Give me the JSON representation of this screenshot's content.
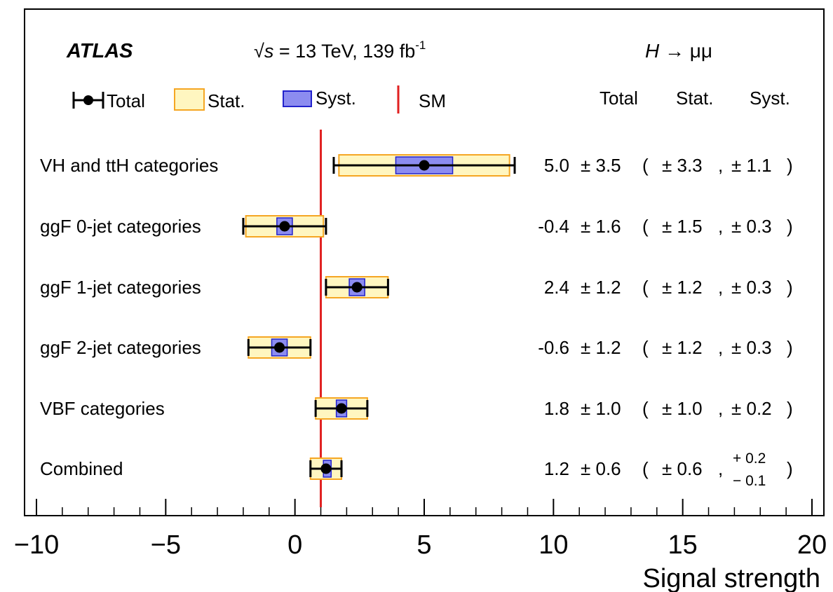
{
  "chart_data": {
    "type": "forest",
    "experiment": "ATLAS",
    "energy_prefix": "√",
    "energy_var": "s",
    "energy_text": " = 13 TeV,  139 fb",
    "energy_exp": "-1",
    "process_var": "H",
    "process_rest": " → μμ",
    "xlabel": "Signal strength",
    "xlim": [
      -10,
      20
    ],
    "xticks": [
      -10,
      -5,
      0,
      5,
      10,
      15,
      20
    ],
    "xtick_labels": [
      "−10",
      "−5",
      "0",
      "5",
      "10",
      "15",
      "20"
    ],
    "reference_line": 1.0,
    "legend": {
      "total": "Total",
      "stat": "Stat.",
      "syst": "Syst.",
      "sm": "SM"
    },
    "column_headers": {
      "total": "Total",
      "stat": "Stat.",
      "syst": "Syst."
    },
    "colors": {
      "stat_fill": "#fff6c0",
      "stat_edge": "#f5a623",
      "syst_fill": "#8c8cf0",
      "syst_edge": "#2222cc",
      "sm_line": "#e02020",
      "marker": "#000000"
    },
    "categories": [
      {
        "label": "VH and ttH categories",
        "value": 5.0,
        "total_err": 3.5,
        "stat_err": 3.3,
        "syst_err": 1.1,
        "value_text": "5.0",
        "total_text": "± 3.5",
        "stat_text": "± 3.3",
        "syst_text": "± 1.1"
      },
      {
        "label": "ggF 0-jet categories",
        "value": -0.4,
        "total_err": 1.6,
        "stat_err": 1.5,
        "syst_err": 0.3,
        "value_text": "-0.4",
        "total_text": "± 1.6",
        "stat_text": "± 1.5",
        "syst_text": "± 0.3"
      },
      {
        "label": "ggF 1-jet categories",
        "value": 2.4,
        "total_err": 1.2,
        "stat_err": 1.2,
        "syst_err": 0.3,
        "value_text": "2.4",
        "total_text": "± 1.2",
        "stat_text": "± 1.2",
        "syst_text": "± 0.3"
      },
      {
        "label": "ggF 2-jet categories",
        "value": -0.6,
        "total_err": 1.2,
        "stat_err": 1.2,
        "syst_err": 0.3,
        "value_text": "-0.6",
        "total_text": "± 1.2",
        "stat_text": "± 1.2",
        "syst_text": "± 0.3"
      },
      {
        "label": "VBF categories",
        "value": 1.8,
        "total_err": 1.0,
        "stat_err": 1.0,
        "syst_err": 0.2,
        "value_text": "1.8",
        "total_text": "± 1.0",
        "stat_text": "± 1.0",
        "syst_text": "± 0.2"
      },
      {
        "label": "Combined",
        "value": 1.2,
        "total_err": 0.6,
        "stat_err": 0.6,
        "syst_err_up": 0.2,
        "syst_err_down": 0.1,
        "value_text": "1.2",
        "total_text": "± 0.6",
        "stat_text": "± 0.6",
        "syst_text_up": "+ 0.2",
        "syst_text_down": "− 0.1"
      }
    ]
  }
}
